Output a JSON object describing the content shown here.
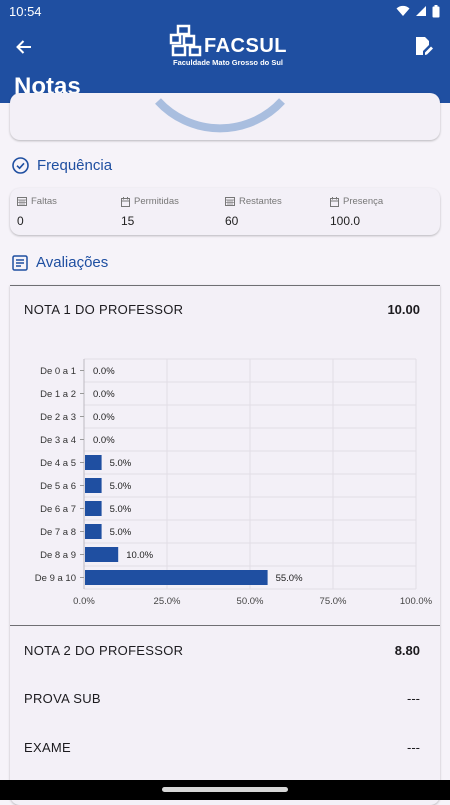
{
  "status_bar": {
    "time": "10:54"
  },
  "app_bar": {
    "logo_name": "FACSUL",
    "logo_subtitle": "Faculdade Mato Grosso do Sul"
  },
  "page": {
    "title": "Notas"
  },
  "frequencia": {
    "title": "Frequência",
    "columns": [
      {
        "label": "Faltas",
        "value": "0",
        "icon": "calendar-grid-icon"
      },
      {
        "label": "Permitidas",
        "value": "15",
        "icon": "calendar-icon"
      },
      {
        "label": "Restantes",
        "value": "60",
        "icon": "calendar-grid-icon"
      },
      {
        "label": "Presença",
        "value": "100.0",
        "icon": "calendar-icon"
      }
    ]
  },
  "avaliacoes": {
    "title": "Avaliações",
    "items": [
      {
        "label": "NOTA 1 DO PROFESSOR",
        "value": "10.00"
      },
      {
        "label": "NOTA 2 DO PROFESSOR",
        "value": "8.80"
      },
      {
        "label": "PROVA SUB",
        "value": "---"
      },
      {
        "label": "EXAME",
        "value": "---"
      }
    ]
  },
  "chart_data": {
    "type": "bar",
    "orientation": "horizontal",
    "categories": [
      "De 0 a 1",
      "De 1 a 2",
      "De 2 a 3",
      "De 3 a 4",
      "De 4 a 5",
      "De 5 a 6",
      "De 6 a 7",
      "De 7 a 8",
      "De 8 a 9",
      "De 9 a 10"
    ],
    "values": [
      0.0,
      0.0,
      0.0,
      0.0,
      5.0,
      5.0,
      5.0,
      5.0,
      10.0,
      55.0
    ],
    "value_labels": [
      "0.0%",
      "0.0%",
      "0.0%",
      "0.0%",
      "5.0%",
      "5.0%",
      "5.0%",
      "5.0%",
      "10.0%",
      "55.0%"
    ],
    "xlim": [
      0,
      100
    ],
    "x_ticks": [
      "0.0%",
      "25.0%",
      "50.0%",
      "75.0%",
      "100.0%"
    ],
    "grid": true,
    "color": "#1f4fa1"
  },
  "colors": {
    "primary": "#1f4fa1",
    "background": "#f6f3f9",
    "card": "#f3f0f7"
  }
}
